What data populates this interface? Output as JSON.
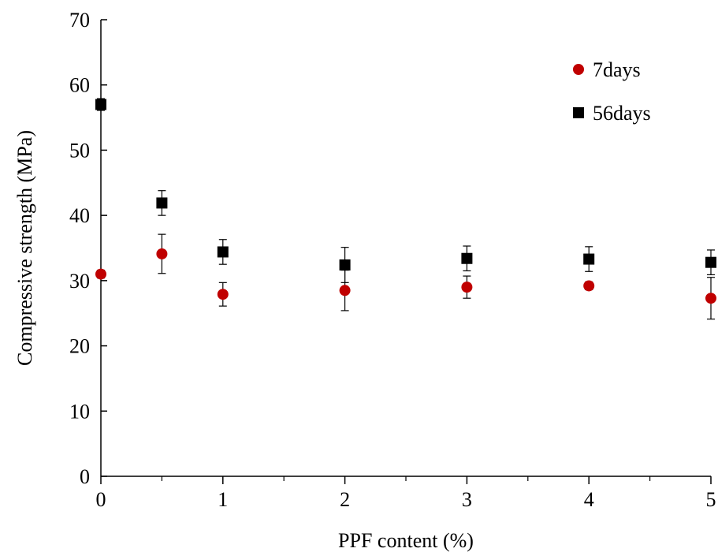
{
  "chart_data": {
    "type": "scatter",
    "title": "",
    "xlabel": "PPF content (%)",
    "ylabel": "Compressive strength (MPa)",
    "xlim": [
      0,
      5
    ],
    "ylim": [
      0,
      70
    ],
    "x_ticks": [
      0,
      1,
      2,
      3,
      4,
      5
    ],
    "x_minor_ticks": [
      0.5,
      1.5,
      2.5,
      3.5,
      4.5
    ],
    "y_ticks": [
      0,
      10,
      20,
      30,
      40,
      50,
      60,
      70
    ],
    "grid": false,
    "legend": "top-right",
    "series": [
      {
        "name": "7days",
        "marker": "circle",
        "color": "#c00000",
        "x": [
          0,
          0.5,
          1,
          2,
          3,
          4,
          5
        ],
        "y": [
          31.0,
          34.1,
          27.9,
          28.5,
          29.0,
          29.2,
          27.3
        ],
        "error": [
          0.6,
          3.0,
          1.8,
          3.1,
          1.7,
          0.6,
          3.2
        ]
      },
      {
        "name": "56days",
        "marker": "square",
        "color": "#000000",
        "x": [
          0,
          0.5,
          1,
          2,
          3,
          4,
          5
        ],
        "y": [
          57.0,
          41.9,
          34.4,
          32.4,
          33.4,
          33.3,
          32.8
        ],
        "error": [
          0.9,
          1.9,
          1.9,
          2.7,
          1.9,
          1.9,
          1.9
        ]
      }
    ]
  }
}
